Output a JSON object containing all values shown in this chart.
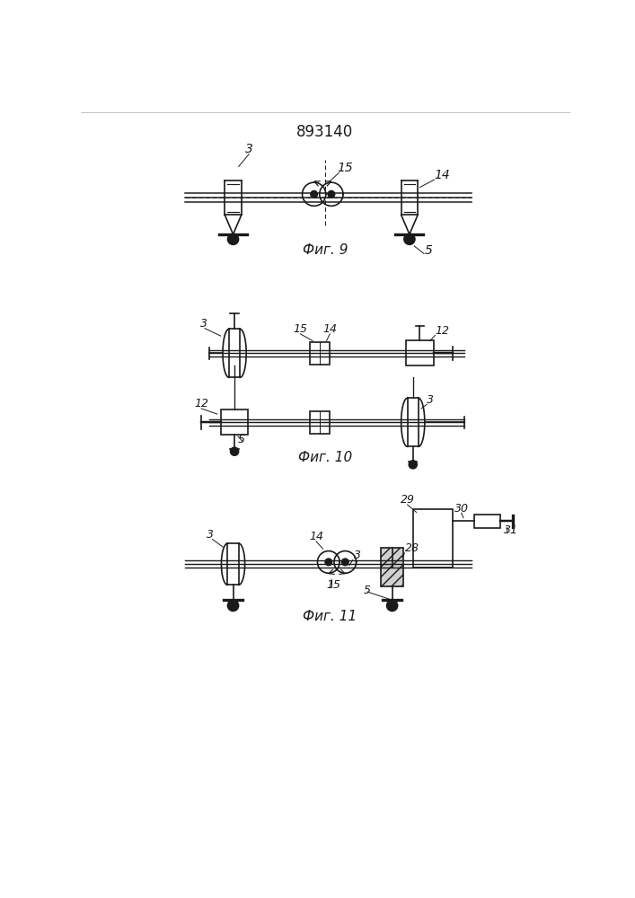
{
  "title": "893140",
  "bg_color": "#ffffff",
  "line_color": "#1a1a1a",
  "fig9_label": "Фиг. 9",
  "fig10_label": "Фиг. 10",
  "fig11_label": "Фиг. 11"
}
